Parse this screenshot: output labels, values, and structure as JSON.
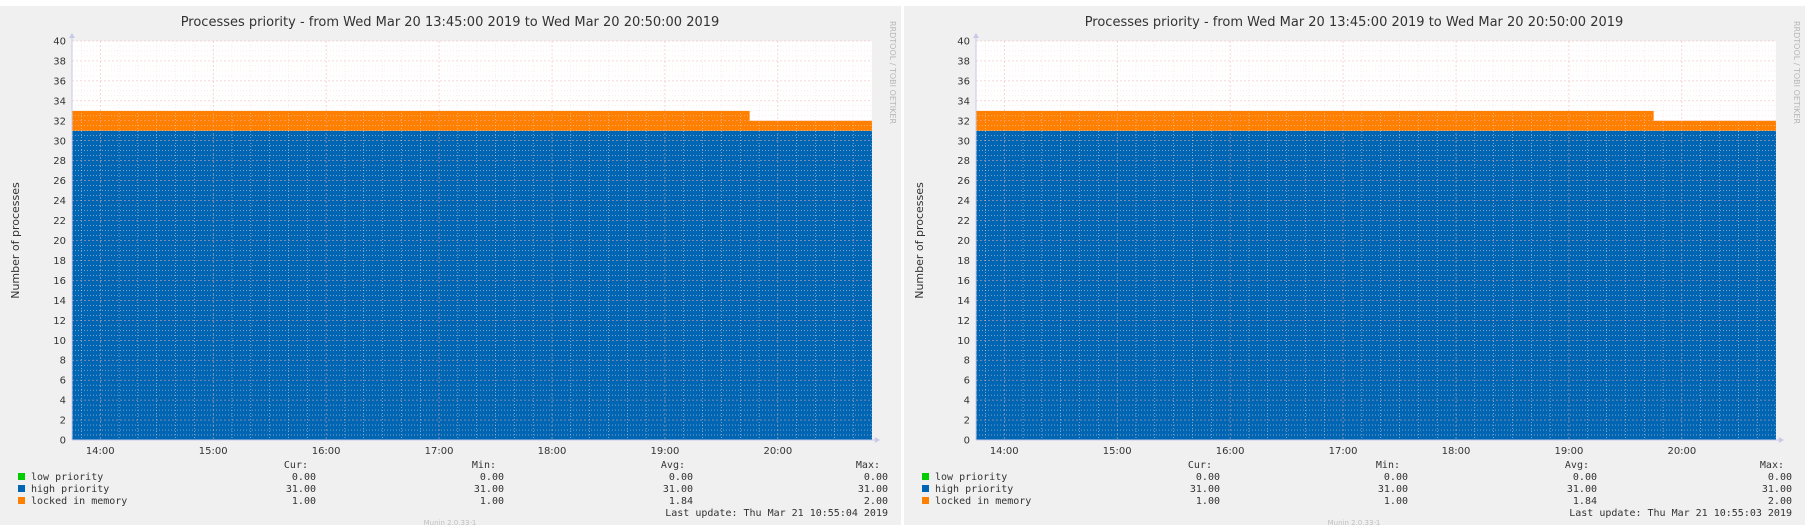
{
  "chart_data": [
    {
      "type": "area",
      "title": "Processes priority - from Wed Mar 20 13:45:00 2019 to Wed Mar 20 20:50:00 2019",
      "ylabel": "Number of processes",
      "xlabel": "",
      "watermark": "RRDTOOL / TOBI OETIKER",
      "ylim": [
        0,
        40
      ],
      "yticks": [
        "0",
        "2",
        "4",
        "6",
        "8",
        "10",
        "12",
        "14",
        "16",
        "18",
        "20",
        "22",
        "24",
        "26",
        "28",
        "30",
        "32",
        "34",
        "36",
        "38",
        "40"
      ],
      "xlim": [
        "13:45",
        "20:50"
      ],
      "xticks": [
        "14:00",
        "15:00",
        "16:00",
        "17:00",
        "18:00",
        "19:00",
        "20:00"
      ],
      "grid": true,
      "stacked": true,
      "series": [
        {
          "name": "low priority",
          "color": "#00cc00",
          "x": [
            "13:45",
            "20:50"
          ],
          "values": [
            0,
            0
          ]
        },
        {
          "name": "high priority",
          "color": "#0066b3",
          "x": [
            "13:45",
            "20:50"
          ],
          "values": [
            31,
            31
          ]
        },
        {
          "name": "locked in memory",
          "color": "#ff8000",
          "x": [
            "13:45",
            "19:45",
            "19:45",
            "20:50"
          ],
          "values": [
            2,
            2,
            1,
            1
          ]
        }
      ],
      "legend": {
        "headers": [
          "Cur:",
          "Min:",
          "Avg:",
          "Max:"
        ],
        "rows": [
          {
            "name": "low priority",
            "color": "#00cc00",
            "values": [
              "0.00",
              "0.00",
              "0.00",
              "0.00"
            ]
          },
          {
            "name": "high priority",
            "color": "#0066b3",
            "values": [
              "31.00",
              "31.00",
              "31.00",
              "31.00"
            ]
          },
          {
            "name": "locked in memory",
            "color": "#ff8000",
            "values": [
              "1.00",
              "1.00",
              "1.84",
              "2.00"
            ]
          }
        ]
      },
      "last_update": "Last update:  Thu Mar 21 10:55:04 2019",
      "footer": "Munin 2.0.33-1"
    },
    {
      "type": "area",
      "title": "Processes priority - from Wed Mar 20 13:45:00 2019 to Wed Mar 20 20:50:00 2019",
      "ylabel": "Number of processes",
      "xlabel": "",
      "watermark": "RRDTOOL / TOBI OETIKER",
      "ylim": [
        0,
        40
      ],
      "yticks": [
        "0",
        "2",
        "4",
        "6",
        "8",
        "10",
        "12",
        "14",
        "16",
        "18",
        "20",
        "22",
        "24",
        "26",
        "28",
        "30",
        "32",
        "34",
        "36",
        "38",
        "40"
      ],
      "xlim": [
        "13:45",
        "20:50"
      ],
      "xticks": [
        "14:00",
        "15:00",
        "16:00",
        "17:00",
        "18:00",
        "19:00",
        "20:00"
      ],
      "grid": true,
      "stacked": true,
      "series": [
        {
          "name": "low priority",
          "color": "#00cc00",
          "x": [
            "13:45",
            "20:50"
          ],
          "values": [
            0,
            0
          ]
        },
        {
          "name": "high priority",
          "color": "#0066b3",
          "x": [
            "13:45",
            "20:50"
          ],
          "values": [
            31,
            31
          ]
        },
        {
          "name": "locked in memory",
          "color": "#ff8000",
          "x": [
            "13:45",
            "19:45",
            "19:45",
            "20:50"
          ],
          "values": [
            2,
            2,
            1,
            1
          ]
        }
      ],
      "legend": {
        "headers": [
          "Cur:",
          "Min:",
          "Avg:",
          "Max:"
        ],
        "rows": [
          {
            "name": "low priority",
            "color": "#00cc00",
            "values": [
              "0.00",
              "0.00",
              "0.00",
              "0.00"
            ]
          },
          {
            "name": "high priority",
            "color": "#0066b3",
            "values": [
              "31.00",
              "31.00",
              "31.00",
              "31.00"
            ]
          },
          {
            "name": "locked in memory",
            "color": "#ff8000",
            "values": [
              "1.00",
              "1.00",
              "1.84",
              "2.00"
            ]
          }
        ]
      },
      "last_update": "Last update:  Thu Mar 21 10:55:03 2019",
      "footer": "Munin 2.0.33-1"
    }
  ]
}
